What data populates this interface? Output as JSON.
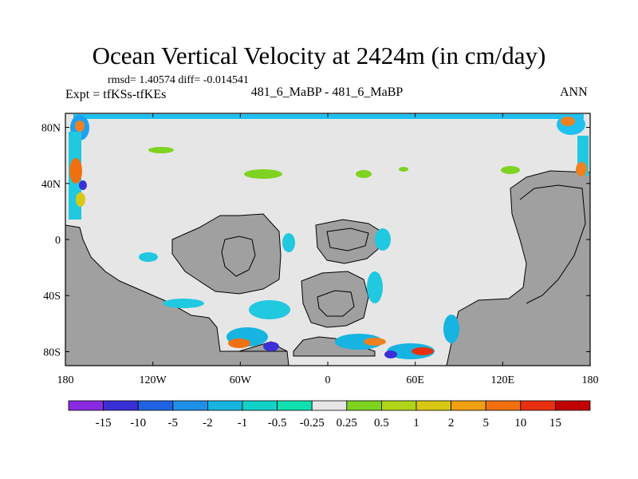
{
  "chart_data": {
    "type": "map",
    "title": "Ocean Vertical Velocity at 2424m (in cm/day)",
    "stats": "rmsd= 1.40574  diff= -0.014541",
    "expt": "Expt = tfKSs-tfKEs",
    "center_label": "481_6_MaBP - 481_6_MaBP",
    "season": "ANN",
    "lon_range": [
      -180,
      180
    ],
    "lat_range": [
      -90,
      90
    ],
    "x_ticks": [
      {
        "value": -180,
        "label": "180"
      },
      {
        "value": -120,
        "label": "120W"
      },
      {
        "value": -60,
        "label": "60W"
      },
      {
        "value": 0,
        "label": "0"
      },
      {
        "value": 60,
        "label": "60E"
      },
      {
        "value": 120,
        "label": "120E"
      },
      {
        "value": 180,
        "label": "180"
      }
    ],
    "y_ticks": [
      {
        "value": 80,
        "label": "80N"
      },
      {
        "value": 40,
        "label": "40N"
      },
      {
        "value": 0,
        "label": "0"
      },
      {
        "value": -40,
        "label": "40S"
      },
      {
        "value": -80,
        "label": "80S"
      }
    ],
    "colorbar": {
      "levels": [
        "-15",
        "-10",
        "-5",
        "-2",
        "-1",
        "-0.5",
        "-0.25",
        "0.25",
        "0.5",
        "1",
        "2",
        "5",
        "10",
        "15"
      ],
      "colors": [
        "#8a2be2",
        "#3b2fd6",
        "#1f63e0",
        "#1e90e8",
        "#16b4e0",
        "#12d2c8",
        "#10e0b0",
        "#e6e6e6",
        "#7ed320",
        "#b0d418",
        "#d8c814",
        "#f0a010",
        "#f07010",
        "#e83010",
        "#c00000"
      ]
    },
    "land_color": "#a0a0a0",
    "ocean_color": "#e6e6e6"
  }
}
